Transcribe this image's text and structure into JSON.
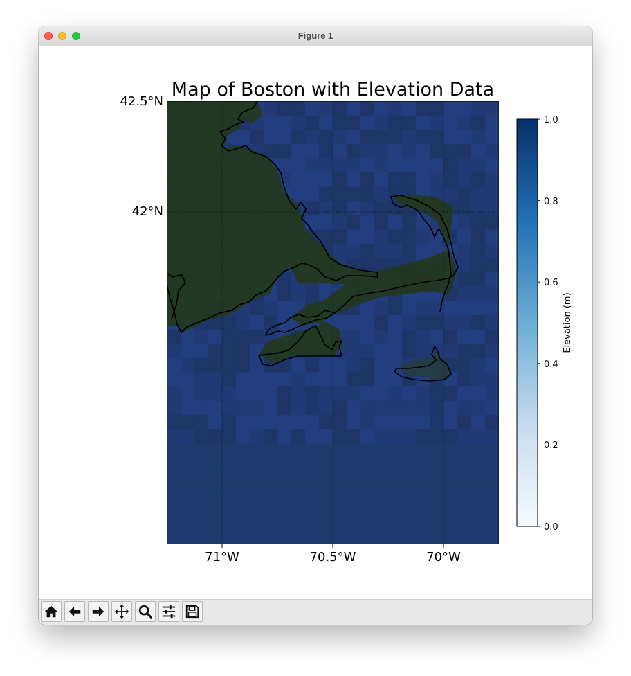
{
  "window": {
    "title": "Figure 1"
  },
  "toolbar": {
    "buttons": [
      {
        "name": "home-button",
        "icon": "home-icon"
      },
      {
        "name": "back-button",
        "icon": "arrow-left-icon"
      },
      {
        "name": "forward-button",
        "icon": "arrow-right-icon"
      },
      {
        "name": "pan-button",
        "icon": "move-icon"
      },
      {
        "name": "zoom-button",
        "icon": "magnifier-icon"
      },
      {
        "name": "configure-subplots-button",
        "icon": "sliders-icon"
      },
      {
        "name": "save-button",
        "icon": "floppy-disk-icon"
      }
    ]
  },
  "chart_data": {
    "type": "heatmap",
    "title": "Map of Boston with Elevation Data",
    "x_ticks": [
      "71°W",
      "70.5°W",
      "70°W"
    ],
    "y_ticks": [
      "42.5°N",
      "42°N"
    ],
    "xlim": [
      -71.25,
      -69.75
    ],
    "ylim": [
      41.5,
      42.5
    ],
    "gridlines": true,
    "colorbar": {
      "label": "Elevation (m)",
      "ticks": [
        "0.0",
        "0.2",
        "0.4",
        "0.6",
        "0.8",
        "1.0"
      ],
      "range": [
        0.0,
        1.0
      ],
      "colormap": "Blues",
      "placement": "right"
    },
    "colors": {
      "ocean": "#1f3a6e",
      "land": "#22351c",
      "coastline": "#000000"
    }
  }
}
